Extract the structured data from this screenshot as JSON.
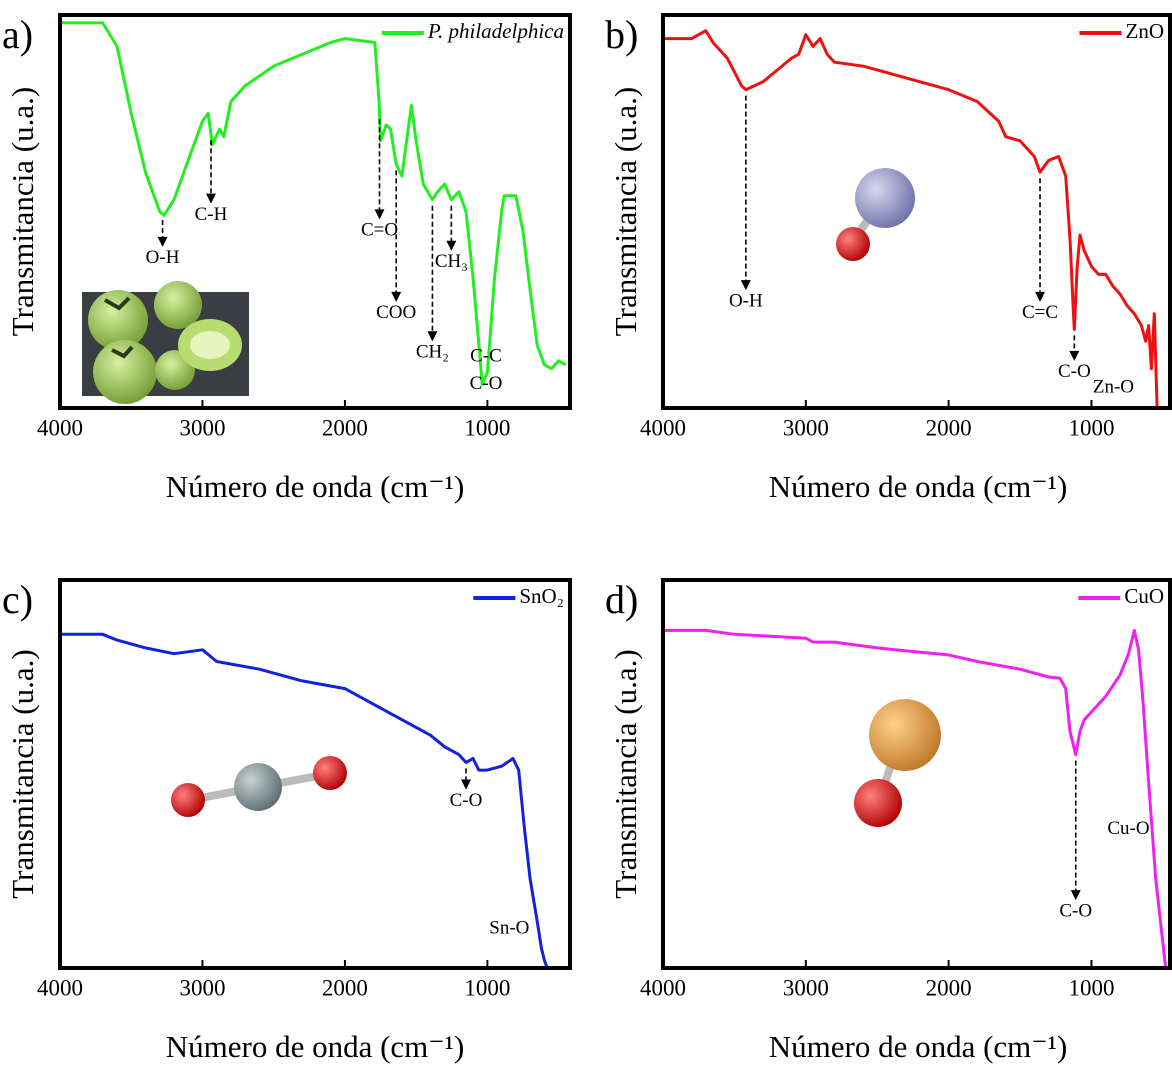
{
  "chart_data": [
    {
      "type": "line",
      "panel": "a)",
      "xlabel": "Número de onda (cm⁻¹)",
      "ylabel": "Transmitancia (u.a.)",
      "xlim": [
        4000,
        420
      ],
      "ylim": [
        0,
        100
      ],
      "xticks": [
        4000,
        3000,
        2000,
        1000
      ],
      "legend": "upper right",
      "legend_italic": true,
      "series": [
        {
          "name": "P. philadelphica",
          "color": "#22ee22",
          "x": [
            4000,
            3700,
            3600,
            3500,
            3400,
            3300,
            3270,
            3200,
            3100,
            3000,
            2960,
            2930,
            2880,
            2850,
            2800,
            2700,
            2500,
            2300,
            2100,
            2000,
            1790,
            1760,
            1750,
            1710,
            1680,
            1640,
            1600,
            1533,
            1500,
            1450,
            1386,
            1350,
            1300,
            1253,
            1200,
            1150,
            1100,
            1050,
            1036,
            1000,
            950,
            900,
            882,
            800,
            750,
            700,
            650,
            600,
            550,
            500,
            450
          ],
          "values": [
            98,
            98,
            92,
            75,
            60,
            50,
            49,
            53,
            63,
            73,
            75,
            67,
            71,
            69,
            78,
            82,
            87,
            90,
            93,
            94,
            93,
            78,
            68,
            72,
            71,
            62,
            59,
            77,
            68,
            57,
            53,
            55,
            57,
            53,
            55,
            50,
            33,
            12,
            6,
            9,
            33,
            50,
            54,
            54,
            45,
            30,
            16,
            11,
            10,
            12,
            11
          ]
        }
      ],
      "annotations": [
        {
          "text": "O-H",
          "x": 3280,
          "y": 41,
          "arrow": true
        },
        {
          "text": "C-H",
          "x": 2940,
          "y": 52,
          "arrow": true
        },
        {
          "text": "C=O",
          "x": 1757,
          "y": 48,
          "arrow": true
        },
        {
          "text": "COO",
          "x": 1640,
          "y": 27,
          "arrow": true
        },
        {
          "text": "CH₂",
          "x": 1386,
          "y": 17,
          "arrow": true
        },
        {
          "text": "CH₃",
          "x": 1253,
          "y": 40,
          "arrow": true
        },
        {
          "text": "C-C",
          "x": 1010,
          "y": 13,
          "arrow": false
        },
        {
          "text": "C-O",
          "x": 1010,
          "y": 6,
          "arrow": false
        }
      ]
    },
    {
      "type": "line",
      "panel": "b)",
      "xlabel": "Número de onda (cm⁻¹)",
      "ylabel": "Transmitancia (u.a.)",
      "xlim": [
        4000,
        450
      ],
      "ylim": [
        0,
        100
      ],
      "xticks": [
        4000,
        3000,
        2000,
        1000
      ],
      "legend": "upper right",
      "series": [
        {
          "name": "ZnO",
          "color": "#ee1111",
          "x": [
            4000,
            3800,
            3700,
            3650,
            3550,
            3450,
            3420,
            3300,
            3200,
            3100,
            3050,
            3000,
            2950,
            2900,
            2850,
            2800,
            2600,
            2400,
            2200,
            2000,
            1800,
            1650,
            1600,
            1500,
            1400,
            1360,
            1300,
            1230,
            1180,
            1150,
            1130,
            1120,
            1100,
            1080,
            1050,
            1000,
            950,
            900,
            850,
            800,
            750,
            700,
            650,
            620,
            600,
            580,
            560,
            540
          ],
          "values": [
            94,
            94,
            96,
            93,
            89,
            82,
            81,
            83,
            86,
            89,
            90,
            95,
            92,
            94,
            90,
            88,
            87,
            85,
            83,
            81,
            78,
            73,
            69,
            68,
            64,
            60,
            63,
            64,
            59,
            43,
            27,
            20,
            36,
            44,
            40,
            36,
            34,
            34,
            31,
            29,
            26,
            24,
            21,
            17,
            21,
            10,
            24,
            0
          ]
        }
      ],
      "annotations": [
        {
          "text": "O-H",
          "x": 3420,
          "y": 30,
          "arrow": true
        },
        {
          "text": "C=C",
          "x": 1360,
          "y": 27,
          "arrow": true
        },
        {
          "text": "C-O",
          "x": 1120,
          "y": 12,
          "arrow": true
        },
        {
          "text": "Zn-O",
          "x": 846,
          "y": 5,
          "arrow": false
        }
      ]
    },
    {
      "type": "line",
      "panel": "c)",
      "xlabel": "Número de onda (cm⁻¹)",
      "ylabel": "Transmitancia (u.a.)",
      "xlim": [
        4000,
        420
      ],
      "ylim": [
        0,
        100
      ],
      "xticks": [
        4000,
        3000,
        2000,
        1000
      ],
      "legend": "upper right",
      "series": [
        {
          "name": "SnO₂",
          "color": "#1122dd",
          "x": [
            4000,
            3700,
            3600,
            3400,
            3200,
            3000,
            2900,
            2600,
            2300,
            2000,
            1800,
            1600,
            1400,
            1300,
            1200,
            1150,
            1100,
            1060,
            1000,
            900,
            820,
            780,
            740,
            700,
            650,
            620,
            600,
            580
          ],
          "values": [
            86,
            86,
            84.5,
            82.5,
            81,
            82,
            79,
            77,
            74,
            72,
            68,
            64,
            60,
            57,
            55,
            53,
            54,
            51,
            51,
            52,
            54,
            51,
            36,
            23,
            12,
            5,
            2,
            0
          ]
        }
      ],
      "annotations": [
        {
          "text": "C-O",
          "x": 1150,
          "y": 46,
          "arrow": true
        },
        {
          "text": "Sn-O",
          "x": 846,
          "y": 10,
          "arrow": false
        }
      ]
    },
    {
      "type": "line",
      "panel": "d)",
      "xlabel": "Número de onda (cm⁻¹)",
      "ylabel": "Transmitancia (u.a.)",
      "xlim": [
        4000,
        450
      ],
      "ylim": [
        0,
        100
      ],
      "xticks": [
        4000,
        3000,
        2000,
        1000
      ],
      "legend": "upper right",
      "series": [
        {
          "name": "CuO",
          "color": "#ee22ee",
          "x": [
            4000,
            3700,
            3500,
            3000,
            2950,
            2800,
            2500,
            2200,
            2000,
            1800,
            1500,
            1300,
            1220,
            1180,
            1150,
            1110,
            1080,
            1050,
            1000,
            900,
            800,
            740,
            700,
            670,
            640,
            600,
            550,
            480
          ],
          "values": [
            87,
            87,
            86,
            85,
            84,
            84,
            82.5,
            81.4,
            80.7,
            79,
            77,
            75,
            74.7,
            72,
            61,
            55,
            61,
            64,
            66,
            70,
            75.5,
            81,
            87,
            82,
            69,
            48,
            23,
            0
          ]
        }
      ],
      "annotations": [
        {
          "text": "C-O",
          "x": 1110,
          "y": 17.5,
          "arrow": true
        },
        {
          "text": "Cu-O",
          "x": 741,
          "y": 35.6,
          "arrow": false
        }
      ]
    }
  ]
}
